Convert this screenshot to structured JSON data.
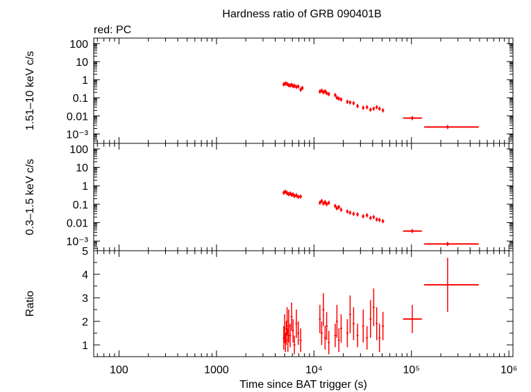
{
  "title": "Hardness ratio of GRB 090401B",
  "legend_text": "red: PC",
  "xlabel": "Time since BAT trigger (s)",
  "colors": {
    "data": "#ff0000",
    "axes": "#000000"
  },
  "chart_data": [
    {
      "type": "scatter",
      "panel": "top",
      "ylabel": "1.51–10 keV c/s",
      "xscale": "log",
      "yscale": "log",
      "xlim": [
        55,
        1100000
      ],
      "ylim": [
        0.0003,
        200
      ],
      "yticks": [
        "100",
        "10",
        "1",
        "0.1",
        "0.01",
        "10⁻³"
      ],
      "series": [
        {
          "points": [
            [
              4900,
              0.55
            ],
            [
              5100,
              0.62
            ],
            [
              5300,
              0.58
            ],
            [
              5500,
              0.5
            ],
            [
              5700,
              0.48
            ],
            [
              5900,
              0.52
            ],
            [
              6100,
              0.44
            ],
            [
              6300,
              0.46
            ],
            [
              6600,
              0.4
            ],
            [
              6900,
              0.42
            ],
            [
              7300,
              0.28
            ],
            [
              7600,
              0.35
            ],
            [
              11500,
              0.22
            ],
            [
              12000,
              0.25
            ],
            [
              12500,
              0.2
            ],
            [
              13000,
              0.23
            ],
            [
              13500,
              0.18
            ],
            [
              14200,
              0.16
            ],
            [
              16500,
              0.14
            ],
            [
              17200,
              0.1
            ],
            [
              18000,
              0.09
            ],
            [
              19000,
              0.08
            ],
            [
              22000,
              0.06
            ],
            [
              23500,
              0.055
            ],
            [
              25500,
              0.05
            ],
            [
              28000,
              0.035
            ],
            [
              32000,
              0.028
            ],
            [
              35000,
              0.03
            ],
            [
              38000,
              0.022
            ],
            [
              41000,
              0.025
            ],
            [
              44000,
              0.03
            ],
            [
              47000,
              0.025
            ],
            [
              51000,
              0.02
            ],
            [
              102000,
              0.0075
            ],
            [
              235000,
              0.0024
            ]
          ],
          "xerr": [
            [
              82000,
              128000
            ],
            [
              135000,
              490000
            ]
          ]
        }
      ]
    },
    {
      "type": "scatter",
      "panel": "middle",
      "ylabel": "0.3–1.5 keV c/s",
      "xscale": "log",
      "yscale": "log",
      "xlim": [
        55,
        1100000
      ],
      "ylim": [
        0.0003,
        200
      ],
      "yticks": [
        "100",
        "10",
        "1",
        "0.1",
        "0.01",
        "10⁻³"
      ],
      "series": [
        {
          "points": [
            [
              4900,
              0.42
            ],
            [
              5100,
              0.48
            ],
            [
              5300,
              0.4
            ],
            [
              5500,
              0.35
            ],
            [
              5700,
              0.38
            ],
            [
              5900,
              0.32
            ],
            [
              6100,
              0.34
            ],
            [
              6300,
              0.28
            ],
            [
              6600,
              0.3
            ],
            [
              6900,
              0.25
            ],
            [
              7300,
              0.26
            ],
            [
              11500,
              0.12
            ],
            [
              12000,
              0.15
            ],
            [
              12500,
              0.11
            ],
            [
              13000,
              0.13
            ],
            [
              13500,
              0.1
            ],
            [
              14200,
              0.12
            ],
            [
              16500,
              0.08
            ],
            [
              17200,
              0.06
            ],
            [
              18000,
              0.07
            ],
            [
              19000,
              0.05
            ],
            [
              22000,
              0.04
            ],
            [
              23500,
              0.035
            ],
            [
              25500,
              0.03
            ],
            [
              28000,
              0.028
            ],
            [
              32000,
              0.022
            ],
            [
              35000,
              0.025
            ],
            [
              38000,
              0.018
            ],
            [
              41000,
              0.02
            ],
            [
              44000,
              0.015
            ],
            [
              47000,
              0.014
            ],
            [
              51000,
              0.012
            ],
            [
              102000,
              0.0035
            ],
            [
              235000,
              0.0007
            ]
          ],
          "xerr": [
            [
              82000,
              128000
            ],
            [
              135000,
              490000
            ]
          ]
        }
      ]
    },
    {
      "type": "scatter",
      "panel": "bottom",
      "ylabel": "Ratio",
      "xscale": "log",
      "yscale": "linear",
      "xlim": [
        55,
        1100000
      ],
      "ylim": [
        0.5,
        5
      ],
      "xticks": [
        "100",
        "1000",
        "10⁴",
        "10⁵",
        "10⁶"
      ],
      "yticks": [
        "1",
        "2",
        "3",
        "4",
        "5"
      ],
      "series": [
        {
          "points": [
            [
              4900,
              1.3,
              0.5
            ],
            [
              5000,
              1.7,
              0.6
            ],
            [
              5100,
              1.1,
              0.4
            ],
            [
              5200,
              1.5,
              0.5
            ],
            [
              5300,
              2.0,
              0.6
            ],
            [
              5400,
              1.2,
              0.5
            ],
            [
              5500,
              1.8,
              0.7
            ],
            [
              5700,
              1.4,
              0.5
            ],
            [
              5900,
              2.2,
              0.6
            ],
            [
              6100,
              1.6,
              0.5
            ],
            [
              6300,
              1.0,
              0.4
            ],
            [
              6600,
              1.9,
              0.6
            ],
            [
              6900,
              1.5,
              0.5
            ],
            [
              7300,
              1.2,
              0.5
            ],
            [
              11500,
              2.1,
              0.6
            ],
            [
              12000,
              1.5,
              0.5
            ],
            [
              12500,
              2.5,
              0.7
            ],
            [
              13000,
              1.3,
              0.5
            ],
            [
              13500,
              1.8,
              0.6
            ],
            [
              14200,
              1.1,
              0.5
            ],
            [
              16500,
              1.4,
              0.5
            ],
            [
              17200,
              2.0,
              0.7
            ],
            [
              18000,
              1.2,
              0.5
            ],
            [
              19000,
              1.7,
              0.6
            ],
            [
              22000,
              1.5,
              0.6
            ],
            [
              23500,
              2.3,
              0.8
            ],
            [
              25500,
              1.9,
              0.7
            ],
            [
              28000,
              1.4,
              0.5
            ],
            [
              32000,
              1.8,
              0.7
            ],
            [
              35000,
              1.3,
              0.5
            ],
            [
              38000,
              2.1,
              0.8
            ],
            [
              41000,
              2.6,
              0.8
            ],
            [
              44000,
              1.9,
              0.7
            ],
            [
              47000,
              1.3,
              0.6
            ],
            [
              51000,
              1.8,
              0.6
            ],
            [
              102000,
              2.1,
              0.6
            ],
            [
              235000,
              3.55,
              1.15
            ]
          ],
          "xerr": [
            [
              82000,
              128000
            ],
            [
              135000,
              490000
            ]
          ]
        }
      ]
    }
  ]
}
